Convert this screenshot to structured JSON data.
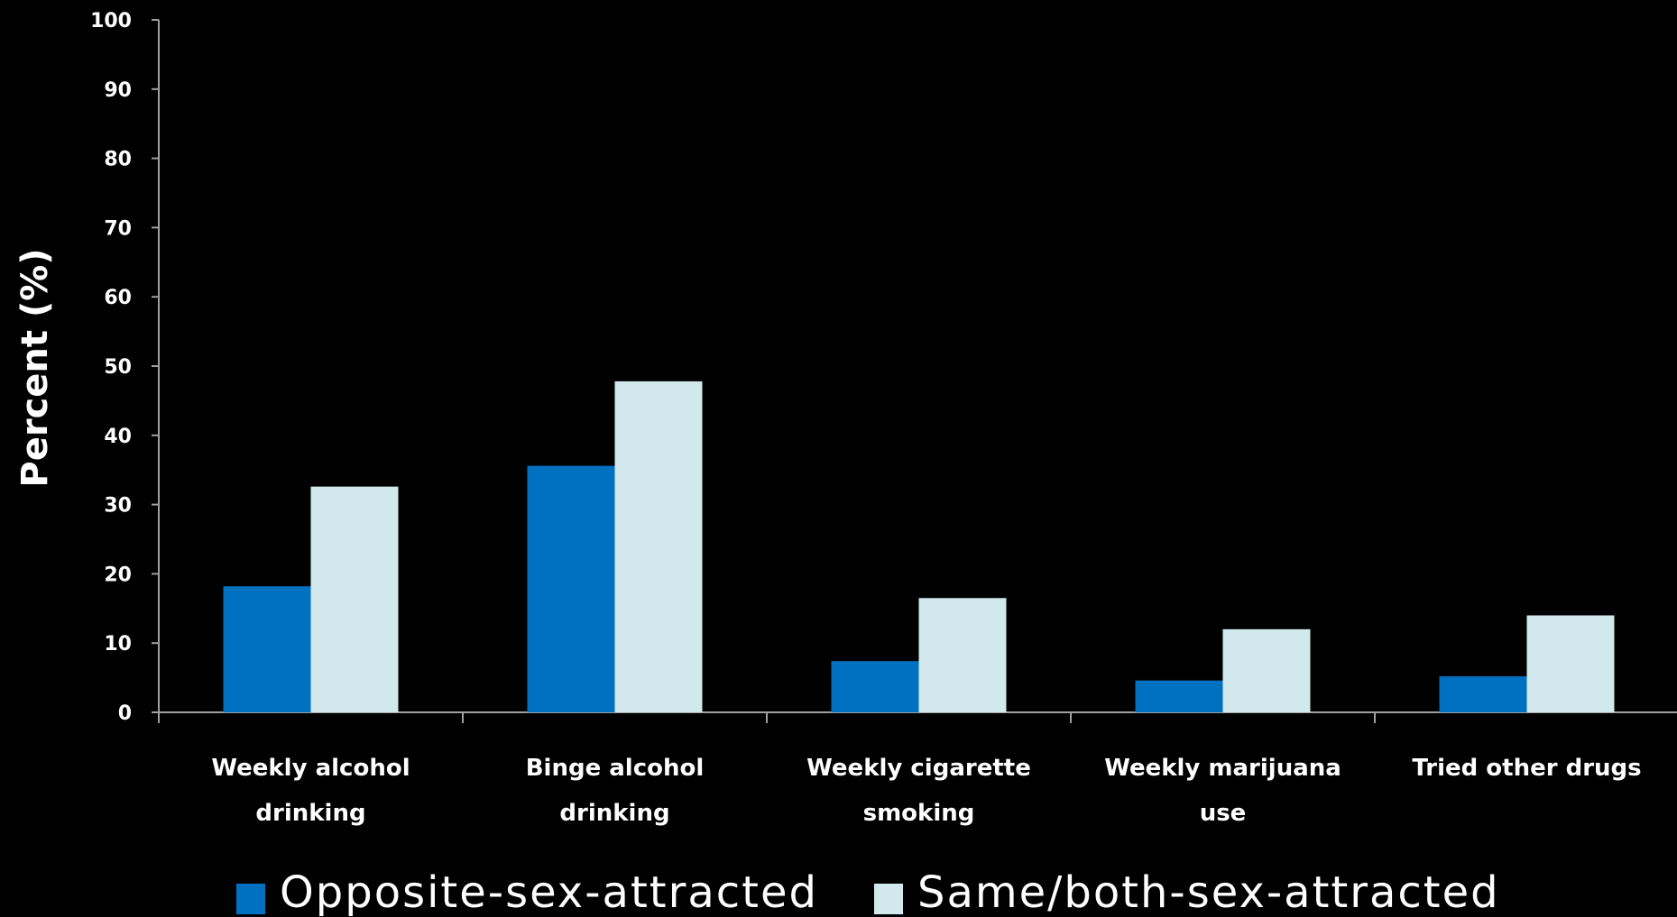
{
  "chart_data": {
    "type": "bar",
    "title": "",
    "xlabel": "",
    "ylabel": "Percent (%)",
    "ylim": [
      0,
      100
    ],
    "yticks": [
      0,
      10,
      20,
      30,
      40,
      50,
      60,
      70,
      80,
      90,
      100
    ],
    "grid": false,
    "legend_position": "bottom",
    "categories": [
      [
        "Weekly alcohol",
        "drinking"
      ],
      [
        "Binge alcohol",
        "drinking"
      ],
      [
        "Weekly cigarette",
        "smoking"
      ],
      [
        "Weekly marijuana",
        "use"
      ],
      [
        "Tried other drugs"
      ]
    ],
    "series": [
      {
        "name": "Opposite-sex-attracted",
        "color": "#0070C0",
        "values": [
          18.2,
          35.6,
          7.4,
          4.6,
          5.2
        ]
      },
      {
        "name": "Same/both-sex-attracted",
        "color": "#D1E8EC",
        "values": [
          32.6,
          47.8,
          16.5,
          12.0,
          14.0
        ]
      }
    ]
  }
}
